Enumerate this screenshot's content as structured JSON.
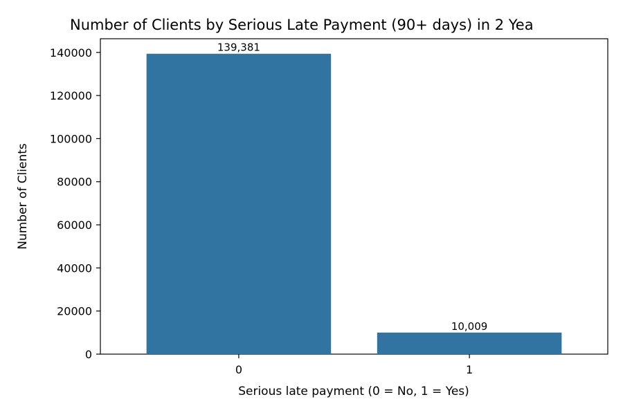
{
  "chart_data": {
    "type": "bar",
    "title": "Number of Clients by Serious Late Payment (90+ days) in 2 Yea",
    "xlabel": "Serious late payment (0 = No, 1 = Yes)",
    "ylabel": "Number of Clients",
    "categories": [
      "0",
      "1"
    ],
    "values": [
      139381,
      10009
    ],
    "value_labels": [
      "139,381",
      "10,009"
    ],
    "ylim": [
      0,
      146350
    ],
    "yticks": [
      0,
      20000,
      40000,
      60000,
      80000,
      100000,
      120000,
      140000
    ],
    "ytick_labels": [
      "0",
      "20000",
      "40000",
      "60000",
      "80000",
      "100000",
      "120000",
      "140000"
    ],
    "bar_color": "#3274a1",
    "grid": false,
    "legend": "none"
  }
}
